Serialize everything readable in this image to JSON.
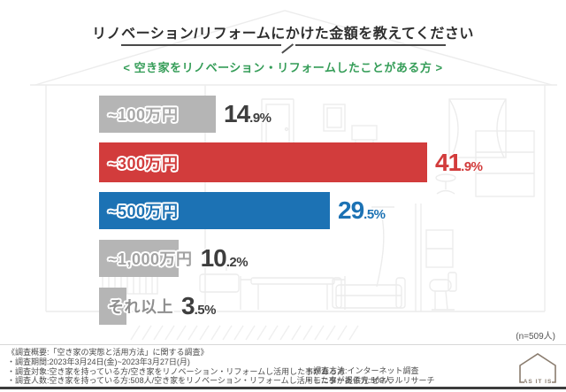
{
  "title": "リノベーション/リフォームにかけた金額を教えてください",
  "subtitle": "< 空き家をリノベーション・リフォームしたことがある方 >",
  "meta": {
    "sample_note": "(n=509人)"
  },
  "colors": {
    "red": "#d23c3c",
    "blue": "#1c72b4",
    "gray_bar": "#b5b5b5",
    "green_subtitle": "#359d58",
    "dark_text": "#3e3e3e",
    "line_art": "#ececec"
  },
  "chart_data": {
    "type": "bar",
    "orientation": "horizontal",
    "title": "リノベーション/リフォームにかけた金額を教えてください",
    "categories": [
      "~100万円",
      "~300万円",
      "~500万円",
      "~1,000万円",
      "それ以上"
    ],
    "values": [
      14.9,
      41.9,
      29.5,
      10.2,
      3.5
    ],
    "unit": "%",
    "xlim": [
      0,
      100
    ],
    "bar_colors": [
      "#b5b5b5",
      "#d23c3c",
      "#1c72b4",
      "#b5b5b5",
      "#b5b5b5"
    ],
    "label_colors": [
      "#a8a8a8",
      "#d23c3c",
      "#1c72b4",
      "#a2a2a2",
      "#8f8f8f"
    ],
    "value_colors": [
      "#3e3e3e",
      "#d23c3c",
      "#1c72b4",
      "#3e3e3e",
      "#3e3e3e"
    ],
    "legend": [],
    "grid": false
  },
  "footer": {
    "lines": [
      "《調査概要:「空き家の実態と活用方法」に関する調査》",
      "・調査期間:2023年3月24日(金)~2023年3月27日(月)",
      "・調査対象:空き家を持っている方/空き家をリノベーション・リフォームし活用した事がある方",
      "・調査人数:空き家を持っている方:508人/空き家をリノベーション・リフォームし活用した事がある方:509人"
    ],
    "right_lines": [
      "・調査方法:インターネット調査",
      "・モニター提供元:ゼネラルリサーチ"
    ],
    "logo_text": "AS IT IS"
  }
}
